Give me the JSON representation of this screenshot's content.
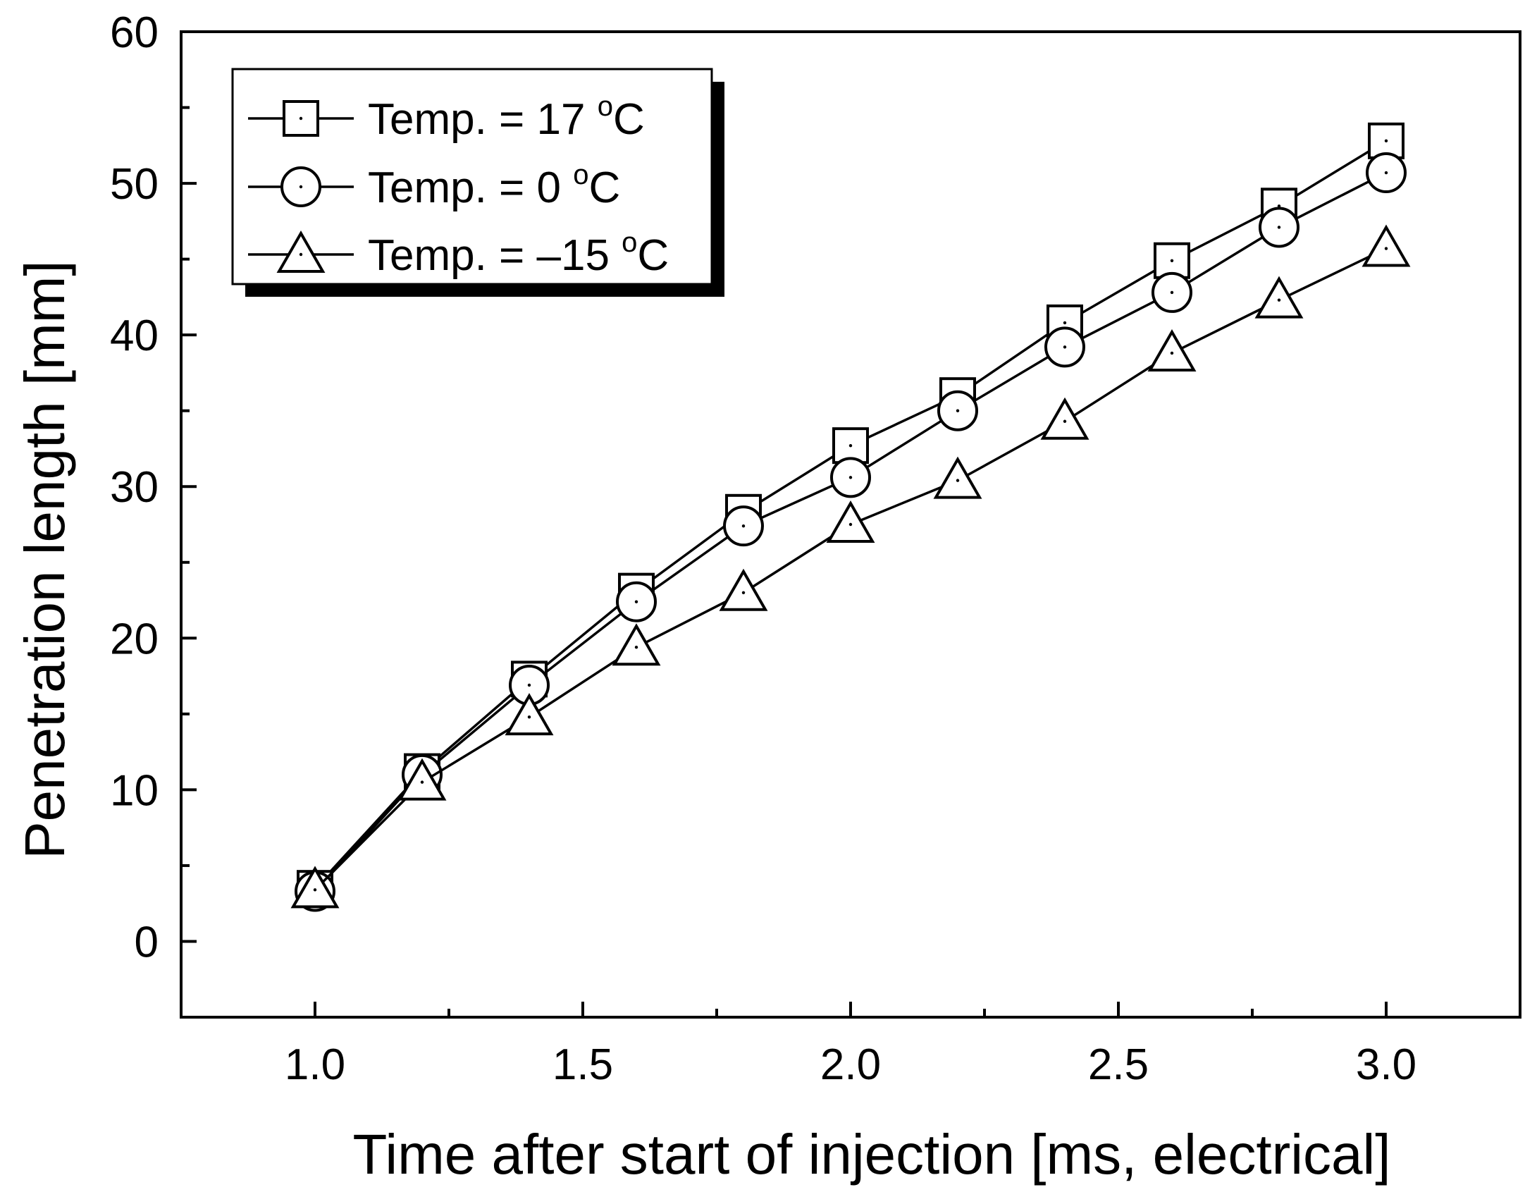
{
  "chart_data": {
    "type": "line",
    "title": "",
    "xlabel": "Time after start of injection [ms, electrical]",
    "ylabel": "Penetration length [mm]",
    "xlim": [
      0.75,
      3.25
    ],
    "ylim": [
      -5,
      60
    ],
    "xticks": [
      1.0,
      1.5,
      2.0,
      2.5,
      3.0
    ],
    "xtick_labels": [
      "1.0",
      "1.5",
      "2.0",
      "2.5",
      "3.0"
    ],
    "xminor": [
      1.25,
      1.75,
      2.25,
      2.75
    ],
    "yticks": [
      0,
      10,
      20,
      30,
      40,
      50,
      60
    ],
    "ytick_labels": [
      "0",
      "10",
      "20",
      "30",
      "40",
      "50",
      "60"
    ],
    "yminor": [
      -5,
      5,
      15,
      25,
      35,
      45,
      55
    ],
    "grid": false,
    "legend_position": "top-left",
    "x": [
      1.0,
      1.2,
      1.4,
      1.6,
      1.8,
      2.0,
      2.2,
      2.4,
      2.6,
      2.8,
      3.0
    ],
    "series": [
      {
        "name": "Temp. = 17 °C",
        "label_prefix": "Temp. = 17 ",
        "label_sup": "o",
        "label_suffix": "C",
        "marker": "square",
        "values": [
          3.5,
          11.2,
          17.3,
          23.1,
          28.3,
          32.7,
          36.0,
          40.8,
          44.9,
          48.5,
          52.8
        ]
      },
      {
        "name": "Temp. = 0 °C",
        "label_prefix": "Temp. = 0 ",
        "label_sup": "o",
        "label_suffix": "C",
        "marker": "circle",
        "values": [
          3.3,
          11.0,
          16.9,
          22.4,
          27.4,
          30.6,
          35.0,
          39.2,
          42.8,
          47.1,
          50.7
        ]
      },
      {
        "name": "Temp. = -15 °C",
        "label_prefix": "Temp. = –15 ",
        "label_sup": "o",
        "label_suffix": "C",
        "marker": "triangle",
        "values": [
          3.4,
          10.5,
          14.8,
          19.4,
          23.0,
          27.5,
          30.4,
          34.3,
          38.8,
          42.3,
          45.7
        ]
      }
    ]
  }
}
